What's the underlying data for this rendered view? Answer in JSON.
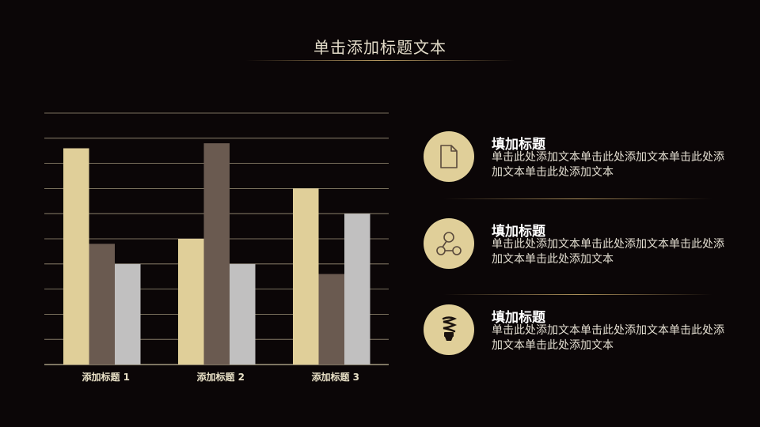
{
  "title": "单击添加标题文本",
  "chart_data": {
    "type": "bar",
    "categories": [
      "添加标题 1",
      "添加标题 2",
      "添加标题 3"
    ],
    "series": [
      {
        "values": [
          4.3,
          2.5,
          3.5
        ],
        "color": "#e0cf99"
      },
      {
        "values": [
          2.4,
          4.4,
          1.8
        ],
        "color": "#6a5a50"
      },
      {
        "values": [
          2.0,
          2.0,
          3.0
        ],
        "color": "#c1c0c0"
      }
    ],
    "ylim": [
      0,
      5
    ],
    "grid": true
  },
  "features": [
    {
      "icon": "document-icon",
      "heading": "填加标题",
      "body": "单击此处添加文本单击此处添加文本单击此处添加文本单击此处添加文本"
    },
    {
      "icon": "network-icon",
      "heading": "填加标题",
      "body": "单击此处添加文本单击此处添加文本单击此处添加文本单击此处添加文本"
    },
    {
      "icon": "lightbulb-icon",
      "heading": "填加标题",
      "body": "单击此处添加文本单击此处添加文本单击此处添加文本单击此处添加文本"
    }
  ]
}
